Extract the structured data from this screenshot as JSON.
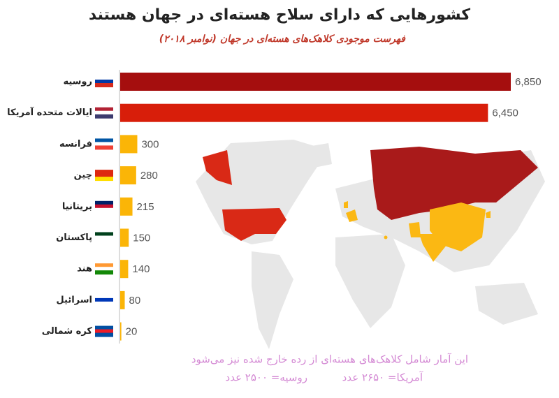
{
  "chart_data": {
    "type": "bar",
    "orientation": "horizontal",
    "title": "کشورهایی که دارای سلاح هسته‌ای در جهان هستند",
    "subtitle": "فهرست موجودی کلاهک‌های هسته‌ای در جهان  (نوامبر ۲۰۱۸)",
    "categories": [
      "روسیه",
      "ایالات متحده آمریکا",
      "فرانسه",
      "چین",
      "بریتانیا",
      "پاکستان",
      "هند",
      "اسرائیل",
      "کره شمالی"
    ],
    "values": [
      6850,
      6450,
      300,
      280,
      215,
      150,
      140,
      80,
      20
    ],
    "value_labels": [
      "6,850",
      "6,450",
      "300",
      "280",
      "215",
      "150",
      "140",
      "80",
      "20"
    ],
    "colors": [
      "#a50e0e",
      "#d81e0a",
      "#fbb507",
      "#fbb507",
      "#fbb507",
      "#fbb507",
      "#fbb507",
      "#fbb507",
      "#fbb507"
    ],
    "notes": [
      "این آمار شامل کلاهک‌های هسته‌ای از رده خارج شده نیز می‌شود",
      "آمریکا= ۲۶۵۰ عدد",
      "روسیه= ۲۵۰۰ عدد"
    ]
  }
}
